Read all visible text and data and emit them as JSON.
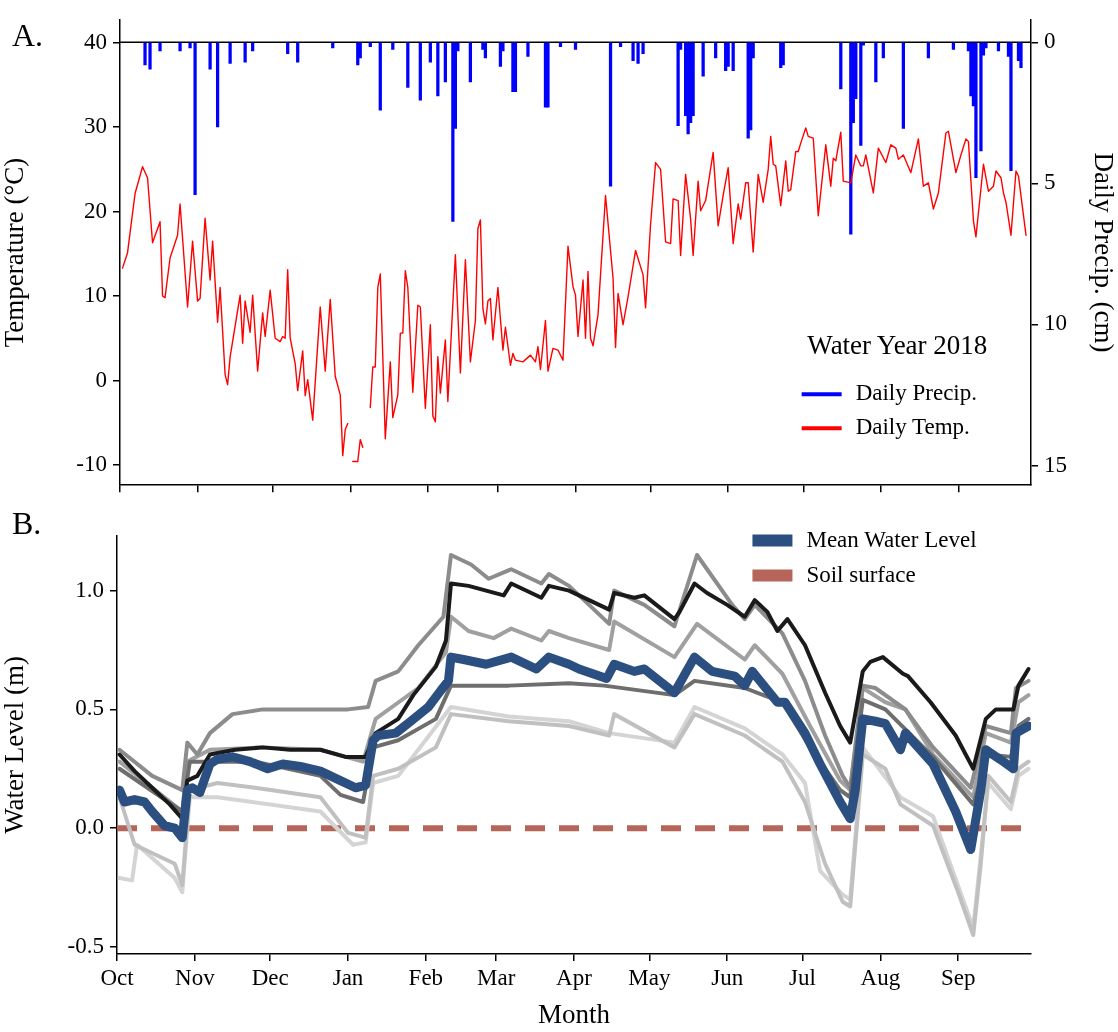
{
  "chart_data": [
    {
      "type": "line",
      "annotations": [
        "A."
      ],
      "ylabel": "Temperature (°C)",
      "y2label": "Daily Precip. (cm)",
      "legend_title": "Water Year 2018",
      "legend": "bottom right",
      "tick_labels": "y",
      "xlim": [
        "2017-10-01",
        "2018-09-30"
      ],
      "xticks": [
        {
          "value": "2017-10-01",
          "label": null
        },
        {
          "value": "2017-11-01",
          "label": null
        },
        {
          "value": "2017-12-01",
          "label": null
        },
        {
          "value": "2018-01-01",
          "label": null
        },
        {
          "value": "2018-02-01",
          "label": null
        },
        {
          "value": "2018-03-01",
          "label": null
        },
        {
          "value": "2018-04-01",
          "label": null
        },
        {
          "value": "2018-05-01",
          "label": null
        },
        {
          "value": "2018-06-01",
          "label": null
        },
        {
          "value": "2018-07-01",
          "label": null
        },
        {
          "value": "2018-08-01",
          "label": null
        },
        {
          "value": "2018-09-01",
          "label": null
        }
      ],
      "ylim": [
        -12.4,
        42.7
      ],
      "yticks": [
        -10,
        0,
        10,
        20,
        30,
        40
      ],
      "y2lim": [
        15.7,
        -0.8
      ],
      "y2ticks": [
        0,
        5,
        10,
        15
      ],
      "ref_lines": [
        {
          "axis": "y2",
          "value": 0,
          "color": "#000000"
        }
      ],
      "series": [
        {
          "name": "Daily Precip.",
          "type": "bar",
          "axis": "y2",
          "color": "#0000ff",
          "x": [
            "2017-10-11",
            "2017-10-13",
            "2017-10-17",
            "2017-10-25",
            "2017-10-29",
            "2017-10-31",
            "2017-11-06",
            "2017-11-09",
            "2017-11-14",
            "2017-11-20",
            "2017-11-23",
            "2017-12-07",
            "2017-12-11",
            "2017-12-25",
            "2018-01-04",
            "2018-01-05",
            "2018-01-09",
            "2018-01-13",
            "2018-01-18",
            "2018-01-24",
            "2018-01-29",
            "2018-02-02",
            "2018-02-05",
            "2018-02-08",
            "2018-02-11",
            "2018-02-12",
            "2018-02-13",
            "2018-02-18",
            "2018-02-23",
            "2018-02-24",
            "2018-03-02",
            "2018-03-03",
            "2018-03-07",
            "2018-03-08",
            "2018-03-13",
            "2018-03-20",
            "2018-03-21",
            "2018-03-26",
            "2018-04-01",
            "2018-04-15",
            "2018-04-19",
            "2018-04-24",
            "2018-04-26",
            "2018-04-28",
            "2018-05-12",
            "2018-05-13",
            "2018-05-15",
            "2018-05-16",
            "2018-05-17",
            "2018-05-18",
            "2018-05-22",
            "2018-05-27",
            "2018-05-31",
            "2018-06-01",
            "2018-06-03",
            "2018-06-09",
            "2018-06-10",
            "2018-06-11",
            "2018-06-22",
            "2018-06-23",
            "2018-07-16",
            "2018-07-20",
            "2018-07-21",
            "2018-07-22",
            "2018-07-24",
            "2018-07-25",
            "2018-07-30",
            "2018-08-02",
            "2018-08-10",
            "2018-08-20",
            "2018-08-30",
            "2018-09-05",
            "2018-09-06",
            "2018-09-07",
            "2018-09-08",
            "2018-09-10",
            "2018-09-11",
            "2018-09-12",
            "2018-09-17",
            "2018-09-21",
            "2018-09-22",
            "2018-09-25",
            "2018-09-26"
          ],
          "values": [
            0.8,
            0.95,
            0.3,
            0.3,
            0.2,
            5.4,
            0.95,
            3.0,
            0.75,
            0.7,
            0.3,
            0.4,
            0.7,
            0.2,
            0.8,
            0.55,
            0.15,
            2.4,
            0.25,
            1.6,
            2.05,
            0.7,
            1.9,
            1.4,
            6.35,
            3.05,
            0.3,
            1.4,
            0.25,
            0.55,
            0.85,
            0.3,
            1.75,
            1.75,
            0.5,
            2.3,
            2.3,
            0.15,
            0.25,
            5.1,
            0.15,
            0.65,
            0.75,
            0.4,
            2.95,
            0.25,
            2.6,
            3.25,
            2.85,
            2.6,
            1.2,
            0.55,
            1.0,
            0.85,
            1.0,
            3.4,
            3.1,
            0.55,
            0.9,
            0.8,
            1.65,
            6.8,
            2.85,
            2.0,
            3.65,
            0.1,
            1.4,
            0.55,
            3.05,
            0.55,
            0.25,
            0.3,
            1.9,
            2.25,
            4.8,
            3.85,
            0.45,
            0.2,
            0.3,
            0.5,
            4.55,
            0.65,
            0.9
          ]
        },
        {
          "name": "Daily Temp.",
          "color": "#ff0000",
          "x": [
            "2017-10-02",
            "2017-10-04",
            "2017-10-07",
            "2017-10-10",
            "2017-10-12",
            "2017-10-14",
            "2017-10-17",
            "2017-10-18",
            "2017-10-19",
            "2017-10-21",
            "2017-10-24",
            "2017-10-25",
            "2017-10-28",
            "2017-10-30",
            "2017-11-01",
            "2017-11-02",
            "2017-11-04",
            "2017-11-06",
            "2017-11-07",
            "2017-11-09",
            "2017-11-10",
            "2017-11-12",
            "2017-11-13",
            "2017-11-14",
            "2017-11-18",
            "2017-11-19",
            "2017-11-20",
            "2017-11-22",
            "2017-11-23",
            "2017-11-25",
            "2017-11-27",
            "2017-11-28",
            "2017-11-30",
            "2017-12-02",
            "2017-12-04",
            "2017-12-05",
            "2017-12-06",
            "2017-12-07",
            "2017-12-08",
            "2017-12-10",
            "2017-12-11",
            "2017-12-13",
            "2017-12-14",
            "2017-12-15",
            "2017-12-17",
            "2017-12-20",
            "2017-12-22",
            "2017-12-24",
            "2017-12-26",
            "2017-12-28",
            "2017-12-29",
            "2017-12-30",
            "2017-12-31",
            "2018-01-01",
            "2018-01-02",
            "2018-01-04",
            "2018-01-05",
            "2018-01-06",
            "2018-01-07",
            "2018-01-09",
            "2018-01-10",
            "2018-01-11",
            "2018-01-12",
            "2018-01-13",
            "2018-01-15",
            "2018-01-17",
            "2018-01-18",
            "2018-01-20",
            "2018-01-21",
            "2018-01-22",
            "2018-01-23",
            "2018-01-24",
            "2018-01-26",
            "2018-01-28",
            "2018-01-29",
            "2018-01-31",
            "2018-02-02",
            "2018-02-03",
            "2018-02-04",
            "2018-02-05",
            "2018-02-06",
            "2018-02-08",
            "2018-02-09",
            "2018-02-12",
            "2018-02-14",
            "2018-02-16",
            "2018-02-18",
            "2018-02-20",
            "2018-02-21",
            "2018-02-22",
            "2018-02-23",
            "2018-02-24",
            "2018-02-25",
            "2018-02-26",
            "2018-02-27",
            "2018-03-01",
            "2018-03-03",
            "2018-03-04",
            "2018-03-06",
            "2018-03-07",
            "2018-03-08",
            "2018-03-11",
            "2018-03-14",
            "2018-03-16",
            "2018-03-17",
            "2018-03-18",
            "2018-03-20",
            "2018-03-21",
            "2018-03-23",
            "2018-03-25",
            "2018-03-27",
            "2018-03-29",
            "2018-03-31",
            "2018-04-01",
            "2018-04-02",
            "2018-04-04",
            "2018-04-05",
            "2018-04-06",
            "2018-04-07",
            "2018-04-08",
            "2018-04-10",
            "2018-04-13",
            "2018-04-16",
            "2018-04-17",
            "2018-04-18",
            "2018-04-20",
            "2018-04-22",
            "2018-04-25",
            "2018-04-28",
            "2018-04-29",
            "2018-05-01",
            "2018-05-03",
            "2018-05-05",
            "2018-05-07",
            "2018-05-09",
            "2018-05-10",
            "2018-05-12",
            "2018-05-13",
            "2018-05-15",
            "2018-05-17",
            "2018-05-18",
            "2018-05-20",
            "2018-05-21",
            "2018-05-23",
            "2018-05-26",
            "2018-05-28",
            "2018-05-30",
            "2018-06-01",
            "2018-06-03",
            "2018-06-05",
            "2018-06-06",
            "2018-06-08",
            "2018-06-09",
            "2018-06-11",
            "2018-06-13",
            "2018-06-15",
            "2018-06-17",
            "2018-06-18",
            "2018-06-19",
            "2018-06-20",
            "2018-06-22",
            "2018-06-24",
            "2018-06-25",
            "2018-06-26",
            "2018-06-28",
            "2018-06-29",
            "2018-06-30",
            "2018-07-02",
            "2018-07-03",
            "2018-07-05",
            "2018-07-07",
            "2018-07-10",
            "2018-07-12",
            "2018-07-13",
            "2018-07-14",
            "2018-07-16",
            "2018-07-17",
            "2018-07-20",
            "2018-07-22",
            "2018-07-24",
            "2018-07-25",
            "2018-07-26",
            "2018-07-29",
            "2018-07-31",
            "2018-08-03",
            "2018-08-05",
            "2018-08-07",
            "2018-08-08",
            "2018-08-10",
            "2018-08-13",
            "2018-08-16",
            "2018-08-18",
            "2018-08-20",
            "2018-08-22",
            "2018-08-24",
            "2018-08-27",
            "2018-08-28",
            "2018-08-31",
            "2018-09-02",
            "2018-09-04",
            "2018-09-05",
            "2018-09-07",
            "2018-09-08",
            "2018-09-11",
            "2018-09-13",
            "2018-09-15",
            "2018-09-16",
            "2018-09-18",
            "2018-09-19",
            "2018-09-20",
            "2018-09-22",
            "2018-09-24",
            "2018-09-25",
            "2018-09-28"
          ],
          "values": [
            13.3,
            15.1,
            22.1,
            25.3,
            24.0,
            16.3,
            18.8,
            10.0,
            9.8,
            14.5,
            17.2,
            20.9,
            8.7,
            16.5,
            9.4,
            9.7,
            19.2,
            11.9,
            16.5,
            6.9,
            11.0,
            0.7,
            -0.5,
            2.8,
            10.1,
            4.4,
            9.4,
            5.7,
            10.1,
            1.1,
            8.0,
            5.2,
            10.7,
            5.0,
            4.6,
            5.2,
            5.0,
            13.1,
            5.0,
            2.0,
            -1.2,
            3.5,
            -1.8,
            0.1,
            -4.7,
            8.7,
            1.1,
            9.6,
            0.5,
            -1.7,
            -8.9,
            -5.8,
            -5.1,
            null,
            -9.6,
            -9.6,
            -7.0,
            -7.9,
            null,
            -3.2,
            1.6,
            1.6,
            11.0,
            12.6,
            -6.9,
            2.2,
            -4.4,
            -1.7,
            5.6,
            5.6,
            13.0,
            11.0,
            -1.4,
            8.9,
            8.7,
            -3.3,
            6.6,
            -4.2,
            -4.9,
            2.8,
            -1.5,
            4.8,
            -2.5,
            14.9,
            0.9,
            14.3,
            2.2,
            7.1,
            18.0,
            19.0,
            8.5,
            6.7,
            9.4,
            9.7,
            4.8,
            11.0,
            3.6,
            6.3,
            1.8,
            3.2,
            2.4,
            2.2,
            3.0,
            2.2,
            4.0,
            1.3,
            7.1,
            1.1,
            3.8,
            3.6,
            2.4,
            15.9,
            11.1,
            10.1,
            5.2,
            11.9,
            5.0,
            12.9,
            5.0,
            4.1,
            7.8,
            21.9,
            12.1,
            3.9,
            10.3,
            6.6,
            9.9,
            15.4,
            12.5,
            8.6,
            18.5,
            25.8,
            25.0,
            16.4,
            16.2,
            21.5,
            21.3,
            14.8,
            24.4,
            19.1,
            14.8,
            23.6,
            20.1,
            21.3,
            27.0,
            18.3,
            21.9,
            25.2,
            16.2,
            20.9,
            19.1,
            23.4,
            23.4,
            15.2,
            24.4,
            21.1,
            25.0,
            28.9,
            25.6,
            25.4,
            20.7,
            26.0,
            22.4,
            22.6,
            27.1,
            27.1,
            28.1,
            29.9,
            28.9,
            28.7,
            19.5,
            27.9,
            23.0,
            26.3,
            26.0,
            29.4,
            23.6,
            23.4,
            26.7,
            25.4,
            25.4,
            26.7,
            22.2,
            27.5,
            25.8,
            27.9,
            27.5,
            26.2,
            26.7,
            24.6,
            28.6,
            23.0,
            23.4,
            20.3,
            22.2,
            29.3,
            29.5,
            24.6,
            26.7,
            28.6,
            28.3,
            18.9,
            17.0,
            25.6,
            22.4,
            23.0,
            24.8,
            24.0,
            22.2,
            21.1,
            17.2,
            24.8,
            24.2,
            17.2
          ]
        }
      ]
    },
    {
      "type": "line",
      "annotations": [
        "B."
      ],
      "xlabel": "Month",
      "ylabel": "Water Level (m)",
      "legend": "top right",
      "xlim": [
        "2017-10-01",
        "2018-09-30"
      ],
      "xticks": [
        {
          "value": "2017-10-01",
          "label": "Oct"
        },
        {
          "value": "2017-11-01",
          "label": "Nov"
        },
        {
          "value": "2017-12-01",
          "label": "Dec"
        },
        {
          "value": "2018-01-01",
          "label": "Jan"
        },
        {
          "value": "2018-02-01",
          "label": "Feb"
        },
        {
          "value": "2018-03-01",
          "label": "Mar"
        },
        {
          "value": "2018-04-01",
          "label": "Apr"
        },
        {
          "value": "2018-05-01",
          "label": "May"
        },
        {
          "value": "2018-06-01",
          "label": "Jun"
        },
        {
          "value": "2018-07-01",
          "label": "Jul"
        },
        {
          "value": "2018-08-01",
          "label": "Aug"
        },
        {
          "value": "2018-09-01",
          "label": "Sep"
        }
      ],
      "ylim": [
        -0.53,
        1.23
      ],
      "yticks": [
        -0.5,
        {
          "value": 0,
          "label": "0.0"
        },
        0.5,
        {
          "value": 1,
          "label": "1.0"
        }
      ],
      "ref_lines": [
        {
          "axis": "y",
          "value": 0,
          "label": "Soil surface",
          "color": "#b5655a",
          "line_style": "dashed"
        }
      ],
      "series": [
        {
          "color": "#d4d4d4",
          "x": [
            "2017-10-02",
            "2017-10-07",
            "2017-10-09",
            "2017-10-24",
            "2017-10-27",
            "2017-10-30",
            "2017-11-10",
            "2017-12-21",
            "2018-01-03",
            "2018-01-08",
            "2018-01-11",
            "2018-01-21",
            "2018-02-11",
            "2018-03-06",
            "2018-03-30",
            "2018-04-15",
            "2018-05-11",
            "2018-05-19",
            "2018-06-08",
            "2018-06-23",
            "2018-07-02",
            "2018-07-08",
            "2018-07-17",
            "2018-07-20",
            "2018-07-25",
            "2018-08-09",
            "2018-08-22",
            "2018-09-07",
            "2018-09-13",
            "2018-09-22",
            "2018-09-25",
            "2018-09-29"
          ],
          "values": [
            -0.21,
            -0.22,
            -0.07,
            -0.21,
            -0.27,
            0.13,
            0.13,
            0.07,
            -0.07,
            -0.06,
            0.19,
            0.22,
            0.51,
            0.47,
            0.45,
            0.4,
            0.36,
            0.51,
            0.42,
            0.31,
            0.19,
            -0.18,
            -0.28,
            -0.3,
            0.34,
            0.13,
            0.05,
            -0.42,
            0.19,
            0.08,
            0.22,
            0.25
          ]
        },
        {
          "color": "#c0c0c0",
          "x": [
            "2017-10-02",
            "2017-10-08",
            "2017-10-24",
            "2017-10-27",
            "2017-10-30",
            "2017-11-10",
            "2017-11-25",
            "2017-12-21",
            "2018-01-01",
            "2018-01-08",
            "2018-01-11",
            "2018-01-21",
            "2018-02-05",
            "2018-02-11",
            "2018-03-06",
            "2018-03-30",
            "2018-04-15",
            "2018-04-17",
            "2018-05-11",
            "2018-05-19",
            "2018-06-08",
            "2018-06-23",
            "2018-07-02",
            "2018-07-10",
            "2018-07-17",
            "2018-07-20",
            "2018-07-25",
            "2018-08-03",
            "2018-08-09",
            "2018-08-22",
            "2018-09-01",
            "2018-09-07",
            "2018-09-10",
            "2018-09-13",
            "2018-09-22",
            "2018-09-25",
            "2018-09-29"
          ],
          "values": [
            0.13,
            -0.07,
            -0.15,
            -0.24,
            0.16,
            0.19,
            0.17,
            0.13,
            -0.02,
            -0.04,
            0.22,
            0.25,
            0.34,
            0.48,
            0.45,
            0.43,
            0.39,
            0.48,
            0.34,
            0.48,
            0.39,
            0.28,
            0.11,
            -0.15,
            -0.31,
            -0.33,
            0.31,
            0.25,
            0.1,
            0.01,
            -0.27,
            -0.45,
            -0.15,
            0.22,
            0.11,
            0.25,
            0.28
          ]
        },
        {
          "color": "#a0a0a0",
          "x": [
            "2017-10-02",
            "2017-10-27",
            "2017-10-29",
            "2017-11-07",
            "2017-11-28",
            "2017-12-21",
            "2018-01-07",
            "2018-01-12",
            "2018-01-29",
            "2018-02-09",
            "2018-02-11",
            "2018-02-18",
            "2018-02-28",
            "2018-03-07",
            "2018-03-19",
            "2018-03-22",
            "2018-03-30",
            "2018-04-15",
            "2018-04-17",
            "2018-05-11",
            "2018-05-20",
            "2018-06-08",
            "2018-06-12",
            "2018-06-23",
            "2018-07-04",
            "2018-07-16",
            "2018-07-20",
            "2018-07-25",
            "2018-08-03",
            "2018-08-11",
            "2018-08-22",
            "2018-09-07",
            "2018-09-12",
            "2018-09-22",
            "2018-09-25",
            "2018-09-29"
          ],
          "values": [
            0.28,
            0.07,
            0.28,
            0.33,
            0.34,
            0.33,
            0.28,
            0.46,
            0.59,
            0.74,
            0.89,
            0.83,
            0.8,
            0.84,
            0.79,
            0.83,
            0.8,
            0.75,
            0.87,
            0.72,
            0.86,
            0.71,
            0.77,
            0.65,
            0.43,
            0.2,
            0.16,
            0.59,
            0.53,
            0.5,
            0.31,
            0.13,
            0.4,
            0.36,
            0.53,
            0.56
          ]
        },
        {
          "color": "#8c8c8c",
          "x": [
            "2017-10-02",
            "2017-10-15",
            "2017-10-27",
            "2017-10-29",
            "2017-11-02",
            "2017-11-07",
            "2017-11-16",
            "2017-11-28",
            "2017-12-09",
            "2017-12-21",
            "2018-01-01",
            "2018-01-09",
            "2018-01-12",
            "2018-01-21",
            "2018-01-29",
            "2018-02-08",
            "2018-02-11",
            "2018-02-19",
            "2018-02-26",
            "2018-03-07",
            "2018-03-19",
            "2018-03-22",
            "2018-03-30",
            "2018-04-15",
            "2018-04-17",
            "2018-04-29",
            "2018-05-11",
            "2018-05-20",
            "2018-05-24",
            "2018-06-03",
            "2018-06-08",
            "2018-06-12",
            "2018-06-23",
            "2018-07-02",
            "2018-07-10",
            "2018-07-17",
            "2018-07-20",
            "2018-07-25",
            "2018-07-30",
            "2018-08-11",
            "2018-08-22",
            "2018-09-06",
            "2018-09-12",
            "2018-09-22",
            "2018-09-24",
            "2018-09-29"
          ],
          "values": [
            0.33,
            0.22,
            0.16,
            0.36,
            0.31,
            0.4,
            0.48,
            0.5,
            0.5,
            0.5,
            0.5,
            0.51,
            0.62,
            0.66,
            0.77,
            0.89,
            1.15,
            1.11,
            1.05,
            1.09,
            1.03,
            1.07,
            1.02,
            0.86,
            1.0,
            0.94,
            0.85,
            1.15,
            1.09,
            0.94,
            0.88,
            0.94,
            0.82,
            0.62,
            0.39,
            0.22,
            0.17,
            0.6,
            0.59,
            0.5,
            0.34,
            0.17,
            0.43,
            0.4,
            0.59,
            0.62
          ]
        },
        {
          "color": "#6e6e6e",
          "x": [
            "2017-10-02",
            "2017-10-27",
            "2017-10-30",
            "2017-11-25",
            "2017-12-21",
            "2017-12-29",
            "2018-01-07",
            "2018-01-11",
            "2018-01-21",
            "2018-02-05",
            "2018-02-11",
            "2018-03-06",
            "2018-03-30",
            "2018-04-13",
            "2018-05-11",
            "2018-05-19",
            "2018-06-08",
            "2018-06-23",
            "2018-07-04",
            "2018-07-16",
            "2018-07-20",
            "2018-07-25",
            "2018-08-03",
            "2018-08-22",
            "2018-09-07",
            "2018-09-13",
            "2018-09-22",
            "2018-09-25",
            "2018-09-29"
          ],
          "values": [
            0.25,
            0.07,
            0.28,
            0.28,
            0.22,
            0.14,
            0.11,
            0.34,
            0.37,
            0.46,
            0.6,
            0.6,
            0.61,
            0.6,
            0.56,
            0.62,
            0.59,
            0.53,
            0.34,
            0.16,
            0.13,
            0.54,
            0.5,
            0.3,
            0.1,
            0.31,
            0.3,
            0.43,
            0.46
          ]
        },
        {
          "color": "#1a1a1a",
          "x": [
            "2017-10-02",
            "2017-10-08",
            "2017-10-15",
            "2017-10-22",
            "2017-10-27",
            "2017-10-29",
            "2017-11-02",
            "2017-11-07",
            "2017-11-17",
            "2017-11-28",
            "2017-12-09",
            "2017-12-21",
            "2017-12-31",
            "2018-01-08",
            "2018-01-12",
            "2018-01-21",
            "2018-01-27",
            "2018-02-05",
            "2018-02-09",
            "2018-02-11",
            "2018-02-18",
            "2018-02-25",
            "2018-03-04",
            "2018-03-07",
            "2018-03-19",
            "2018-03-22",
            "2018-03-30",
            "2018-04-15",
            "2018-04-17",
            "2018-04-25",
            "2018-04-29",
            "2018-05-11",
            "2018-05-13",
            "2018-05-19",
            "2018-05-24",
            "2018-06-01",
            "2018-06-08",
            "2018-06-12",
            "2018-06-17",
            "2018-06-21",
            "2018-06-25",
            "2018-07-02",
            "2018-07-10",
            "2018-07-16",
            "2018-07-20",
            "2018-07-25",
            "2018-07-28",
            "2018-08-02",
            "2018-08-10",
            "2018-08-12",
            "2018-08-21",
            "2018-08-31",
            "2018-09-07",
            "2018-09-12",
            "2018-09-16",
            "2018-09-21",
            "2018-09-23",
            "2018-09-25",
            "2018-09-29"
          ],
          "values": [
            0.31,
            0.24,
            0.17,
            0.1,
            0.04,
            0.2,
            0.22,
            0.31,
            0.33,
            0.34,
            0.33,
            0.33,
            0.3,
            0.3,
            0.4,
            0.46,
            0.56,
            0.68,
            0.79,
            1.03,
            1.02,
            1.0,
            0.98,
            1.03,
            0.97,
            1.02,
            1.0,
            0.92,
            0.99,
            0.97,
            0.98,
            0.88,
            0.91,
            1.03,
            0.99,
            0.94,
            0.89,
            0.96,
            0.91,
            0.83,
            0.88,
            0.77,
            0.57,
            0.43,
            0.36,
            0.66,
            0.7,
            0.72,
            0.65,
            0.64,
            0.53,
            0.39,
            0.25,
            0.46,
            0.5,
            0.5,
            0.5,
            0.6,
            0.67
          ]
        },
        {
          "name": "Mean Water Level",
          "color": "#2b4f81",
          "x": [
            "2017-10-02",
            "2017-10-04",
            "2017-10-08",
            "2017-10-12",
            "2017-10-15",
            "2017-10-20",
            "2017-10-24",
            "2017-10-27",
            "2017-10-29",
            "2017-10-31",
            "2017-11-03",
            "2017-11-07",
            "2017-11-10",
            "2017-11-16",
            "2017-11-23",
            "2017-11-30",
            "2017-12-06",
            "2017-12-13",
            "2017-12-21",
            "2017-12-29",
            "2018-01-04",
            "2018-01-08",
            "2018-01-11",
            "2018-01-13",
            "2018-01-20",
            "2018-01-26",
            "2018-02-02",
            "2018-02-07",
            "2018-02-10",
            "2018-02-11",
            "2018-02-16",
            "2018-02-25",
            "2018-03-07",
            "2018-03-17",
            "2018-03-22",
            "2018-03-30",
            "2018-04-03",
            "2018-04-14",
            "2018-04-17",
            "2018-04-25",
            "2018-04-29",
            "2018-05-11",
            "2018-05-19",
            "2018-05-26",
            "2018-06-04",
            "2018-06-08",
            "2018-06-11",
            "2018-06-21",
            "2018-06-24",
            "2018-07-02",
            "2018-07-08",
            "2018-07-16",
            "2018-07-20",
            "2018-07-22",
            "2018-07-25",
            "2018-07-30",
            "2018-08-03",
            "2018-08-09",
            "2018-08-11",
            "2018-08-22",
            "2018-08-31",
            "2018-09-06",
            "2018-09-10",
            "2018-09-12",
            "2018-09-19",
            "2018-09-23",
            "2018-09-24",
            "2018-09-29"
          ],
          "values": [
            0.16,
            0.11,
            0.12,
            0.11,
            0.07,
            0.01,
            0.0,
            -0.04,
            0.16,
            0.17,
            0.15,
            0.27,
            0.29,
            0.3,
            0.28,
            0.25,
            0.27,
            0.26,
            0.24,
            0.2,
            0.17,
            0.18,
            0.37,
            0.39,
            0.4,
            0.45,
            0.51,
            0.58,
            0.62,
            0.72,
            0.71,
            0.69,
            0.72,
            0.67,
            0.72,
            0.69,
            0.67,
            0.63,
            0.69,
            0.66,
            0.67,
            0.57,
            0.72,
            0.66,
            0.64,
            0.6,
            0.66,
            0.53,
            0.53,
            0.4,
            0.27,
            0.11,
            0.04,
            0.16,
            0.46,
            0.45,
            0.44,
            0.33,
            0.4,
            0.27,
            0.07,
            -0.09,
            0.16,
            0.33,
            0.28,
            0.25,
            0.4,
            0.43
          ]
        }
      ]
    }
  ]
}
